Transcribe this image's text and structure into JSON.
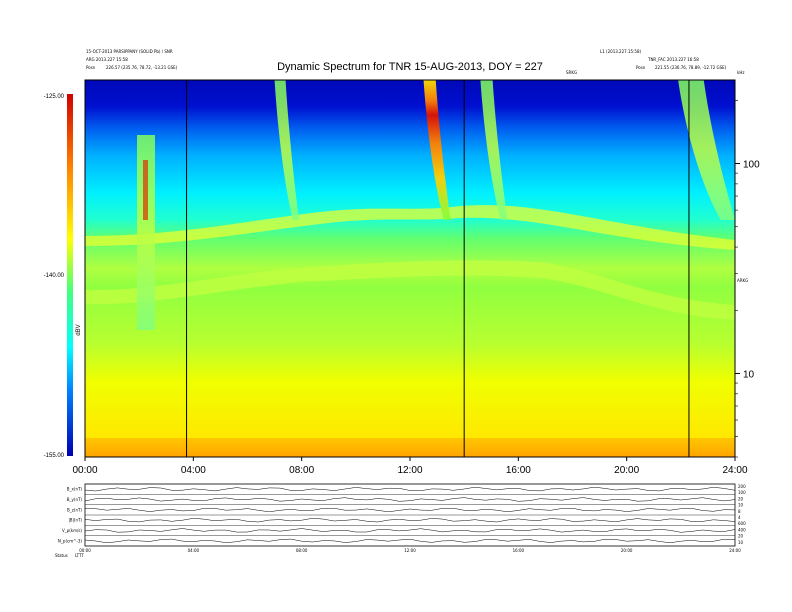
{
  "chart_data": {
    "type": "heatmap",
    "title": "Dynamic Spectrum for TNR 15-AUG-2013, DOY = 227",
    "header": {
      "left_line1": "15-OCT-2013 PARSIPPANY (SOLID Pb) / SNR",
      "left_line2": "ARG 2013.227 15:58",
      "left_posn_label": "Posn",
      "left_posn_value": "226.57 (235.76, 78.72, -13.21 GSE)",
      "right_line1": "L1 (2013.227.15:58)",
      "right_line2": "TNR_FAC  2013.227 16:58",
      "right_posn_label": "Posn",
      "right_posn_value": "221.55 (236.76, 78.89, -12.72 GSE)",
      "center_right_label": "SRKG",
      "far_right_label": "kHz",
      "right_mid_label": "ARKG"
    },
    "colorbar": {
      "label": "dBV",
      "max_label": "-125.00",
      "mid_label": "-140.00",
      "min_label": "-155.00",
      "range": [
        -155,
        -125
      ]
    },
    "x_axis": {
      "tick_labels": [
        "00:00",
        "04:00",
        "08:00",
        "12:00",
        "16:00",
        "20:00",
        "24:00"
      ],
      "range_hours": [
        0,
        24
      ]
    },
    "y_axis_right": {
      "scale": "log",
      "unit": "kHz",
      "tick_labels": [
        "100",
        "10"
      ],
      "tick_values": [
        100,
        10
      ],
      "range": [
        4,
        250
      ]
    },
    "marker_lines_hours": [
      3.75,
      14.0,
      22.3
    ],
    "radio_bursts": [
      {
        "start_hour": 7.0,
        "end_hour": 7.9,
        "intensity": "moderate"
      },
      {
        "start_hour": 12.5,
        "end_hour": 13.5,
        "intensity": "strong"
      },
      {
        "start_hour": 14.6,
        "end_hour": 15.6,
        "intensity": "moderate"
      },
      {
        "start_hour": 21.9,
        "end_hour": 24.0,
        "intensity": "moderate"
      }
    ],
    "lower_panels": {
      "left_labels": [
        "B_x(nT)",
        "B_y(nT)",
        "B_z(nT)",
        "|B|(nT)",
        "V_p(km/s)",
        "N_p(cm^-3)"
      ],
      "right_labels": [
        "200",
        "100",
        "20",
        "10",
        "8",
        "4",
        "600",
        "400",
        "20",
        "10"
      ],
      "bottom_labels": [
        "00:00",
        "04:00",
        "08:00",
        "12:00",
        "16:00",
        "20:00",
        "24:00"
      ],
      "footer_left": "Status",
      "footer_code": "LTTT"
    }
  }
}
